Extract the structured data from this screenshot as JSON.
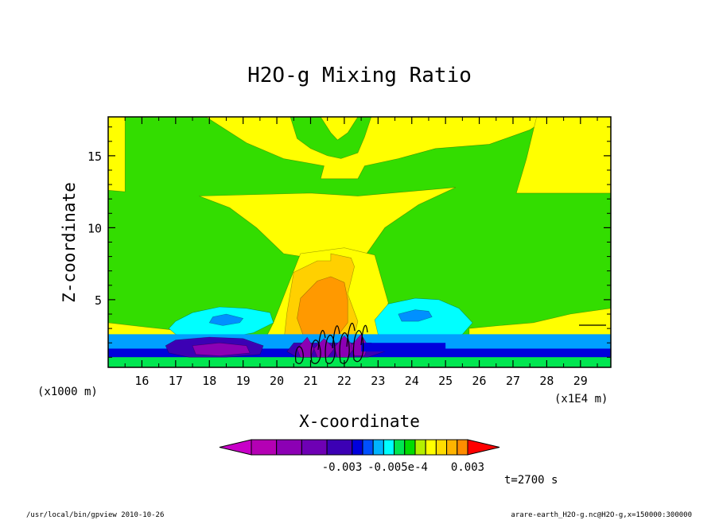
{
  "chart_data": {
    "type": "heatmap",
    "title": "H2O-g Mixing Ratio",
    "xlabel": "X-coordinate",
    "ylabel": "Z-coordinate",
    "x_unit": "(x1E4 m)",
    "y_unit": "(x1000 m)",
    "x_ticks": [
      16,
      17,
      18,
      19,
      20,
      21,
      22,
      23,
      24,
      25,
      26,
      27,
      28,
      29
    ],
    "y_ticks": [
      5,
      10,
      15
    ],
    "xlim": [
      15.0,
      29.9
    ],
    "ylim": [
      0.3,
      17.7
    ],
    "time_label": "t=2700 s",
    "colorbar": {
      "colors": [
        "#c800c8",
        "#b400b4",
        "#8c00b4",
        "#6e00b4",
        "#3c00b4",
        "#0000dc",
        "#0050ff",
        "#00b4ff",
        "#00ffff",
        "#00e650",
        "#00dc00",
        "#b4f000",
        "#ffff00",
        "#ffdc00",
        "#ffb400",
        "#ff8c00",
        "#ff0000"
      ],
      "labels": [
        "-0.003",
        "-0.005e-4",
        "0.003"
      ]
    },
    "plot_regions": [
      {
        "shape": "rect",
        "x0": 15.0,
        "x1": 29.9,
        "y0": 0.3,
        "y1": 17.7,
        "color": "#33dd00"
      },
      {
        "shape": "poly",
        "color": "#ffff00",
        "points": [
          [
            17.7,
            12.2
          ],
          [
            21.0,
            12.4
          ],
          [
            22.4,
            12.2
          ],
          [
            25.3,
            12.8
          ],
          [
            24.2,
            11.6
          ],
          [
            23.2,
            10.0
          ],
          [
            22.6,
            8.0
          ],
          [
            21.8,
            7.9
          ],
          [
            21.0,
            7.9
          ],
          [
            20.2,
            8.2
          ],
          [
            19.4,
            10.0
          ],
          [
            18.6,
            11.4
          ]
        ]
      },
      {
        "shape": "poly",
        "color": "#ffff00",
        "points": [
          [
            20.7,
            8.2
          ],
          [
            22.0,
            8.6
          ],
          [
            22.9,
            8.1
          ],
          [
            23.3,
            4.8
          ],
          [
            23.2,
            3.4
          ],
          [
            22.8,
            1.4
          ],
          [
            21.3,
            1.3
          ],
          [
            20.0,
            1.5
          ],
          [
            19.6,
            2.0
          ],
          [
            19.9,
            3.4
          ],
          [
            20.3,
            5.8
          ]
        ]
      },
      {
        "shape": "poly",
        "color": "#ffff00",
        "points": [
          [
            17.9,
            17.7
          ],
          [
            19.1,
            15.9
          ],
          [
            20.2,
            14.8
          ],
          [
            21.4,
            14.3
          ],
          [
            21.3,
            13.4
          ],
          [
            22.4,
            13.4
          ],
          [
            22.6,
            14.3
          ],
          [
            23.6,
            14.8
          ],
          [
            24.7,
            15.5
          ],
          [
            26.3,
            15.8
          ],
          [
            27.5,
            16.8
          ],
          [
            28.1,
            17.7
          ]
        ]
      },
      {
        "shape": "poly",
        "color": "#ffff00",
        "points": [
          [
            27.7,
            17.7
          ],
          [
            27.4,
            14.8
          ],
          [
            27.1,
            12.4
          ],
          [
            29.9,
            12.4
          ],
          [
            29.9,
            17.7
          ]
        ]
      },
      {
        "shape": "poly",
        "color": "#ffff00",
        "points": [
          [
            15.0,
            17.7
          ],
          [
            15.0,
            12.6
          ],
          [
            15.5,
            12.5
          ],
          [
            15.5,
            17.7
          ]
        ]
      },
      {
        "shape": "poly",
        "color": "#ffff00",
        "points": [
          [
            15.0,
            3.4
          ],
          [
            16.1,
            3.1
          ],
          [
            16.9,
            2.9
          ],
          [
            17.6,
            2.5
          ],
          [
            18.0,
            2.2
          ],
          [
            15.0,
            2.2
          ]
        ]
      },
      {
        "shape": "poly",
        "color": "#ffff00",
        "points": [
          [
            25.7,
            3.0
          ],
          [
            26.6,
            3.2
          ],
          [
            27.6,
            3.4
          ],
          [
            28.7,
            4.0
          ],
          [
            29.9,
            4.4
          ],
          [
            29.9,
            2.2
          ],
          [
            25.7,
            2.2
          ]
        ]
      },
      {
        "shape": "poly",
        "color": "#33dd00",
        "points": [
          [
            20.4,
            17.7
          ],
          [
            20.6,
            16.2
          ],
          [
            21.0,
            15.5
          ],
          [
            21.5,
            15.0
          ],
          [
            21.9,
            14.8
          ],
          [
            22.4,
            15.2
          ],
          [
            22.6,
            16.3
          ],
          [
            22.8,
            17.7
          ]
        ]
      },
      {
        "shape": "poly",
        "color": "#ffff00",
        "points": [
          [
            21.3,
            17.7
          ],
          [
            21.6,
            16.6
          ],
          [
            21.8,
            16.1
          ],
          [
            22.1,
            16.6
          ],
          [
            22.4,
            17.7
          ]
        ]
      },
      {
        "shape": "poly",
        "color": "#ffd000",
        "points": [
          [
            20.5,
            6.9
          ],
          [
            21.2,
            7.7
          ],
          [
            21.6,
            7.7
          ],
          [
            21.6,
            8.2
          ],
          [
            22.2,
            7.9
          ],
          [
            22.3,
            7.3
          ],
          [
            22.1,
            5.4
          ],
          [
            22.4,
            3.5
          ],
          [
            22.2,
            1.6
          ],
          [
            21.0,
            1.5
          ],
          [
            20.2,
            2.0
          ],
          [
            20.3,
            4.1
          ]
        ]
      },
      {
        "shape": "poly",
        "color": "#ff9900",
        "points": [
          [
            20.7,
            5.1
          ],
          [
            21.2,
            6.3
          ],
          [
            21.6,
            6.6
          ],
          [
            22.0,
            6.2
          ],
          [
            22.1,
            5.0
          ],
          [
            22.1,
            3.4
          ],
          [
            21.7,
            2.2
          ],
          [
            21.1,
            1.9
          ],
          [
            20.8,
            2.4
          ],
          [
            20.6,
            3.7
          ]
        ]
      },
      {
        "shape": "poly",
        "color": "#00ffff",
        "points": [
          [
            17.5,
            4.1
          ],
          [
            18.3,
            4.5
          ],
          [
            19.1,
            4.4
          ],
          [
            19.8,
            4.1
          ],
          [
            19.9,
            3.4
          ],
          [
            19.3,
            2.7
          ],
          [
            18.4,
            2.3
          ],
          [
            17.6,
            2.3
          ],
          [
            17.0,
            2.6
          ],
          [
            16.8,
            3.0
          ],
          [
            17.0,
            3.5
          ]
        ]
      },
      {
        "shape": "poly",
        "color": "#00ffff",
        "points": [
          [
            23.3,
            4.7
          ],
          [
            24.1,
            5.1
          ],
          [
            24.8,
            5.0
          ],
          [
            25.4,
            4.4
          ],
          [
            25.8,
            3.4
          ],
          [
            25.5,
            2.6
          ],
          [
            24.6,
            2.2
          ],
          [
            23.6,
            2.2
          ],
          [
            23.0,
            2.6
          ],
          [
            22.9,
            3.6
          ]
        ]
      },
      {
        "shape": "poly",
        "color": "#0090ff",
        "points": [
          [
            18.1,
            3.8
          ],
          [
            18.5,
            4.0
          ],
          [
            19.0,
            3.7
          ],
          [
            18.9,
            3.4
          ],
          [
            18.4,
            3.2
          ],
          [
            18.0,
            3.4
          ]
        ]
      },
      {
        "shape": "poly",
        "color": "#0090ff",
        "points": [
          [
            23.6,
            4.0
          ],
          [
            24.1,
            4.3
          ],
          [
            24.5,
            4.2
          ],
          [
            24.6,
            3.8
          ],
          [
            24.2,
            3.5
          ],
          [
            23.7,
            3.5
          ]
        ]
      },
      {
        "shape": "rect",
        "x0": 15.0,
        "x1": 29.9,
        "y0": 1.2,
        "y1": 2.6,
        "color": "#00a0ff"
      },
      {
        "shape": "rect",
        "x0": 15.0,
        "x1": 29.9,
        "y0": 1.0,
        "y1": 1.6,
        "color": "#0000dc"
      },
      {
        "shape": "rect",
        "x0": 15.0,
        "x1": 29.9,
        "y0": 0.3,
        "y1": 1.0,
        "color": "#00e650"
      },
      {
        "shape": "poly",
        "color": "#3c00b4",
        "points": [
          [
            17.0,
            2.2
          ],
          [
            18.0,
            2.4
          ],
          [
            19.0,
            2.3
          ],
          [
            19.6,
            1.8
          ],
          [
            19.5,
            1.2
          ],
          [
            18.5,
            1.0
          ],
          [
            17.4,
            1.0
          ],
          [
            16.8,
            1.3
          ],
          [
            16.7,
            1.8
          ]
        ]
      },
      {
        "shape": "poly",
        "color": "#8c00b4",
        "points": [
          [
            17.5,
            1.8
          ],
          [
            18.3,
            2.0
          ],
          [
            19.1,
            1.8
          ],
          [
            19.2,
            1.3
          ],
          [
            18.3,
            1.1
          ],
          [
            17.6,
            1.2
          ]
        ]
      },
      {
        "shape": "poly",
        "color": "#3c00b4",
        "points": [
          [
            20.5,
            2.0
          ],
          [
            22.8,
            2.0
          ],
          [
            23.2,
            1.4
          ],
          [
            22.7,
            1.0
          ],
          [
            20.6,
            1.0
          ],
          [
            20.3,
            1.4
          ]
        ]
      },
      {
        "shape": "poly",
        "color": "#8c00b4",
        "points": [
          [
            20.6,
            1.6
          ],
          [
            20.9,
            2.4
          ],
          [
            21.1,
            1.6
          ],
          [
            21.0,
            1.0
          ],
          [
            20.7,
            1.0
          ]
        ]
      },
      {
        "shape": "poly",
        "color": "#8c00b4",
        "points": [
          [
            21.1,
            1.6
          ],
          [
            21.4,
            2.3
          ],
          [
            21.7,
            1.6
          ],
          [
            21.5,
            1.0
          ],
          [
            21.2,
            1.0
          ]
        ]
      },
      {
        "shape": "poly",
        "color": "#8c00b4",
        "points": [
          [
            21.7,
            1.7
          ],
          [
            22.0,
            2.5
          ],
          [
            22.3,
            1.7
          ],
          [
            22.1,
            1.0
          ],
          [
            21.8,
            1.0
          ]
        ]
      },
      {
        "shape": "poly",
        "color": "#8c00b4",
        "points": [
          [
            22.2,
            1.8
          ],
          [
            22.5,
            2.6
          ],
          [
            22.7,
            1.8
          ],
          [
            22.6,
            1.1
          ],
          [
            22.3,
            1.1
          ]
        ]
      },
      {
        "shape": "rect",
        "x0": 22.5,
        "x1": 25.0,
        "y0": 1.4,
        "y1": 2.0,
        "color": "#0000dc"
      }
    ]
  },
  "footer": {
    "left": "/usr/local/bin/gpview  2010-10-26",
    "right": "arare-earth_H2O-g.nc@H2O-g,x=150000:300000"
  }
}
